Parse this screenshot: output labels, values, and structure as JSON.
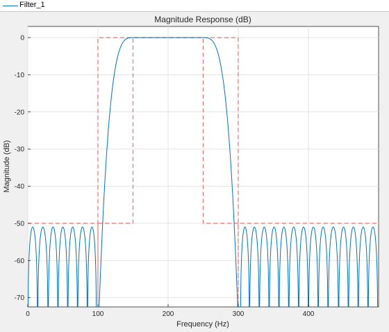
{
  "legend": {
    "entry": "Filter_1",
    "color": "#0072bd"
  },
  "chart_data": {
    "type": "line",
    "title": "Magnitude Response (dB)",
    "xlabel": "Frequency (Hz)",
    "ylabel": "Magnitude (dB)",
    "xlim": [
      0,
      500
    ],
    "ylim": [
      -72.5,
      3
    ],
    "xticks": [
      0,
      100,
      200,
      300,
      400
    ],
    "yticks": [
      0,
      -10,
      -20,
      -30,
      -40,
      -50,
      -60,
      -70
    ],
    "grid": true,
    "series": [
      {
        "name": "Filter_1",
        "color": "#0072bd",
        "passband": [
          150,
          250
        ],
        "stopband_nulls_low": [
          0,
          14,
          29,
          43,
          57,
          71,
          85,
          98
        ],
        "stopband_nulls_high": [
          303,
          316,
          330,
          344,
          358,
          372,
          386,
          400,
          414,
          428,
          443,
          457,
          471,
          485,
          499
        ],
        "sidelobe_peak_db": -51
      }
    ],
    "mask": {
      "color": "#e8706f",
      "style": "dashed",
      "points": [
        [
          0,
          -50
        ],
        [
          100,
          -50
        ],
        [
          100,
          -72.5
        ],
        [
          100,
          0
        ],
        [
          300,
          0
        ],
        [
          300,
          -72.5
        ],
        [
          300,
          -50
        ],
        [
          500,
          -50
        ]
      ],
      "inner": [
        [
          100,
          -50
        ],
        [
          150,
          -50
        ],
        [
          150,
          0
        ],
        [
          250,
          0
        ],
        [
          250,
          -50
        ],
        [
          300,
          -50
        ]
      ]
    }
  }
}
